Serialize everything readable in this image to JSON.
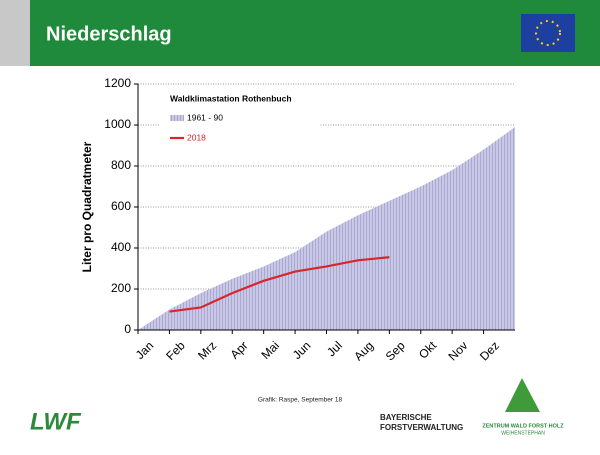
{
  "header": {
    "title": "Niederschlag"
  },
  "chart_data": {
    "type": "area_line",
    "y_label": "Liter pro Quadratmeter",
    "legend_title": "Waldklimastation Rothenbuch",
    "categories": [
      "Jan",
      "Feb",
      "Mrz",
      "Apr",
      "Mai",
      "Jun",
      "Jul",
      "Aug",
      "Sep",
      "Okt",
      "Nov",
      "Dez"
    ],
    "series": [
      {
        "name": "1961 - 90",
        "color": "#b9b9dc",
        "values": [
          100,
          180,
          250,
          310,
          380,
          480,
          560,
          630,
          700,
          780,
          880,
          990
        ]
      },
      {
        "name": "2018",
        "color": "#d7262d",
        "values": [
          90,
          110,
          180,
          240,
          285,
          310,
          340,
          355,
          null,
          null,
          null,
          null
        ]
      }
    ],
    "ylim": [
      0,
      1200
    ],
    "yticks": [
      0,
      200,
      400,
      600,
      800,
      1000,
      1200
    ],
    "grid": true
  },
  "credit": "Grafik: Raspe, September 18",
  "footer": {
    "logo_left": "LWF",
    "org1_line1": "BAYERISCHE",
    "org1_line2": "FORSTVERWALTUNG",
    "org2_line1": "ZENTRUM WALD FORST HOLZ",
    "org2_line2": "WEIHENSTEPHAN"
  }
}
